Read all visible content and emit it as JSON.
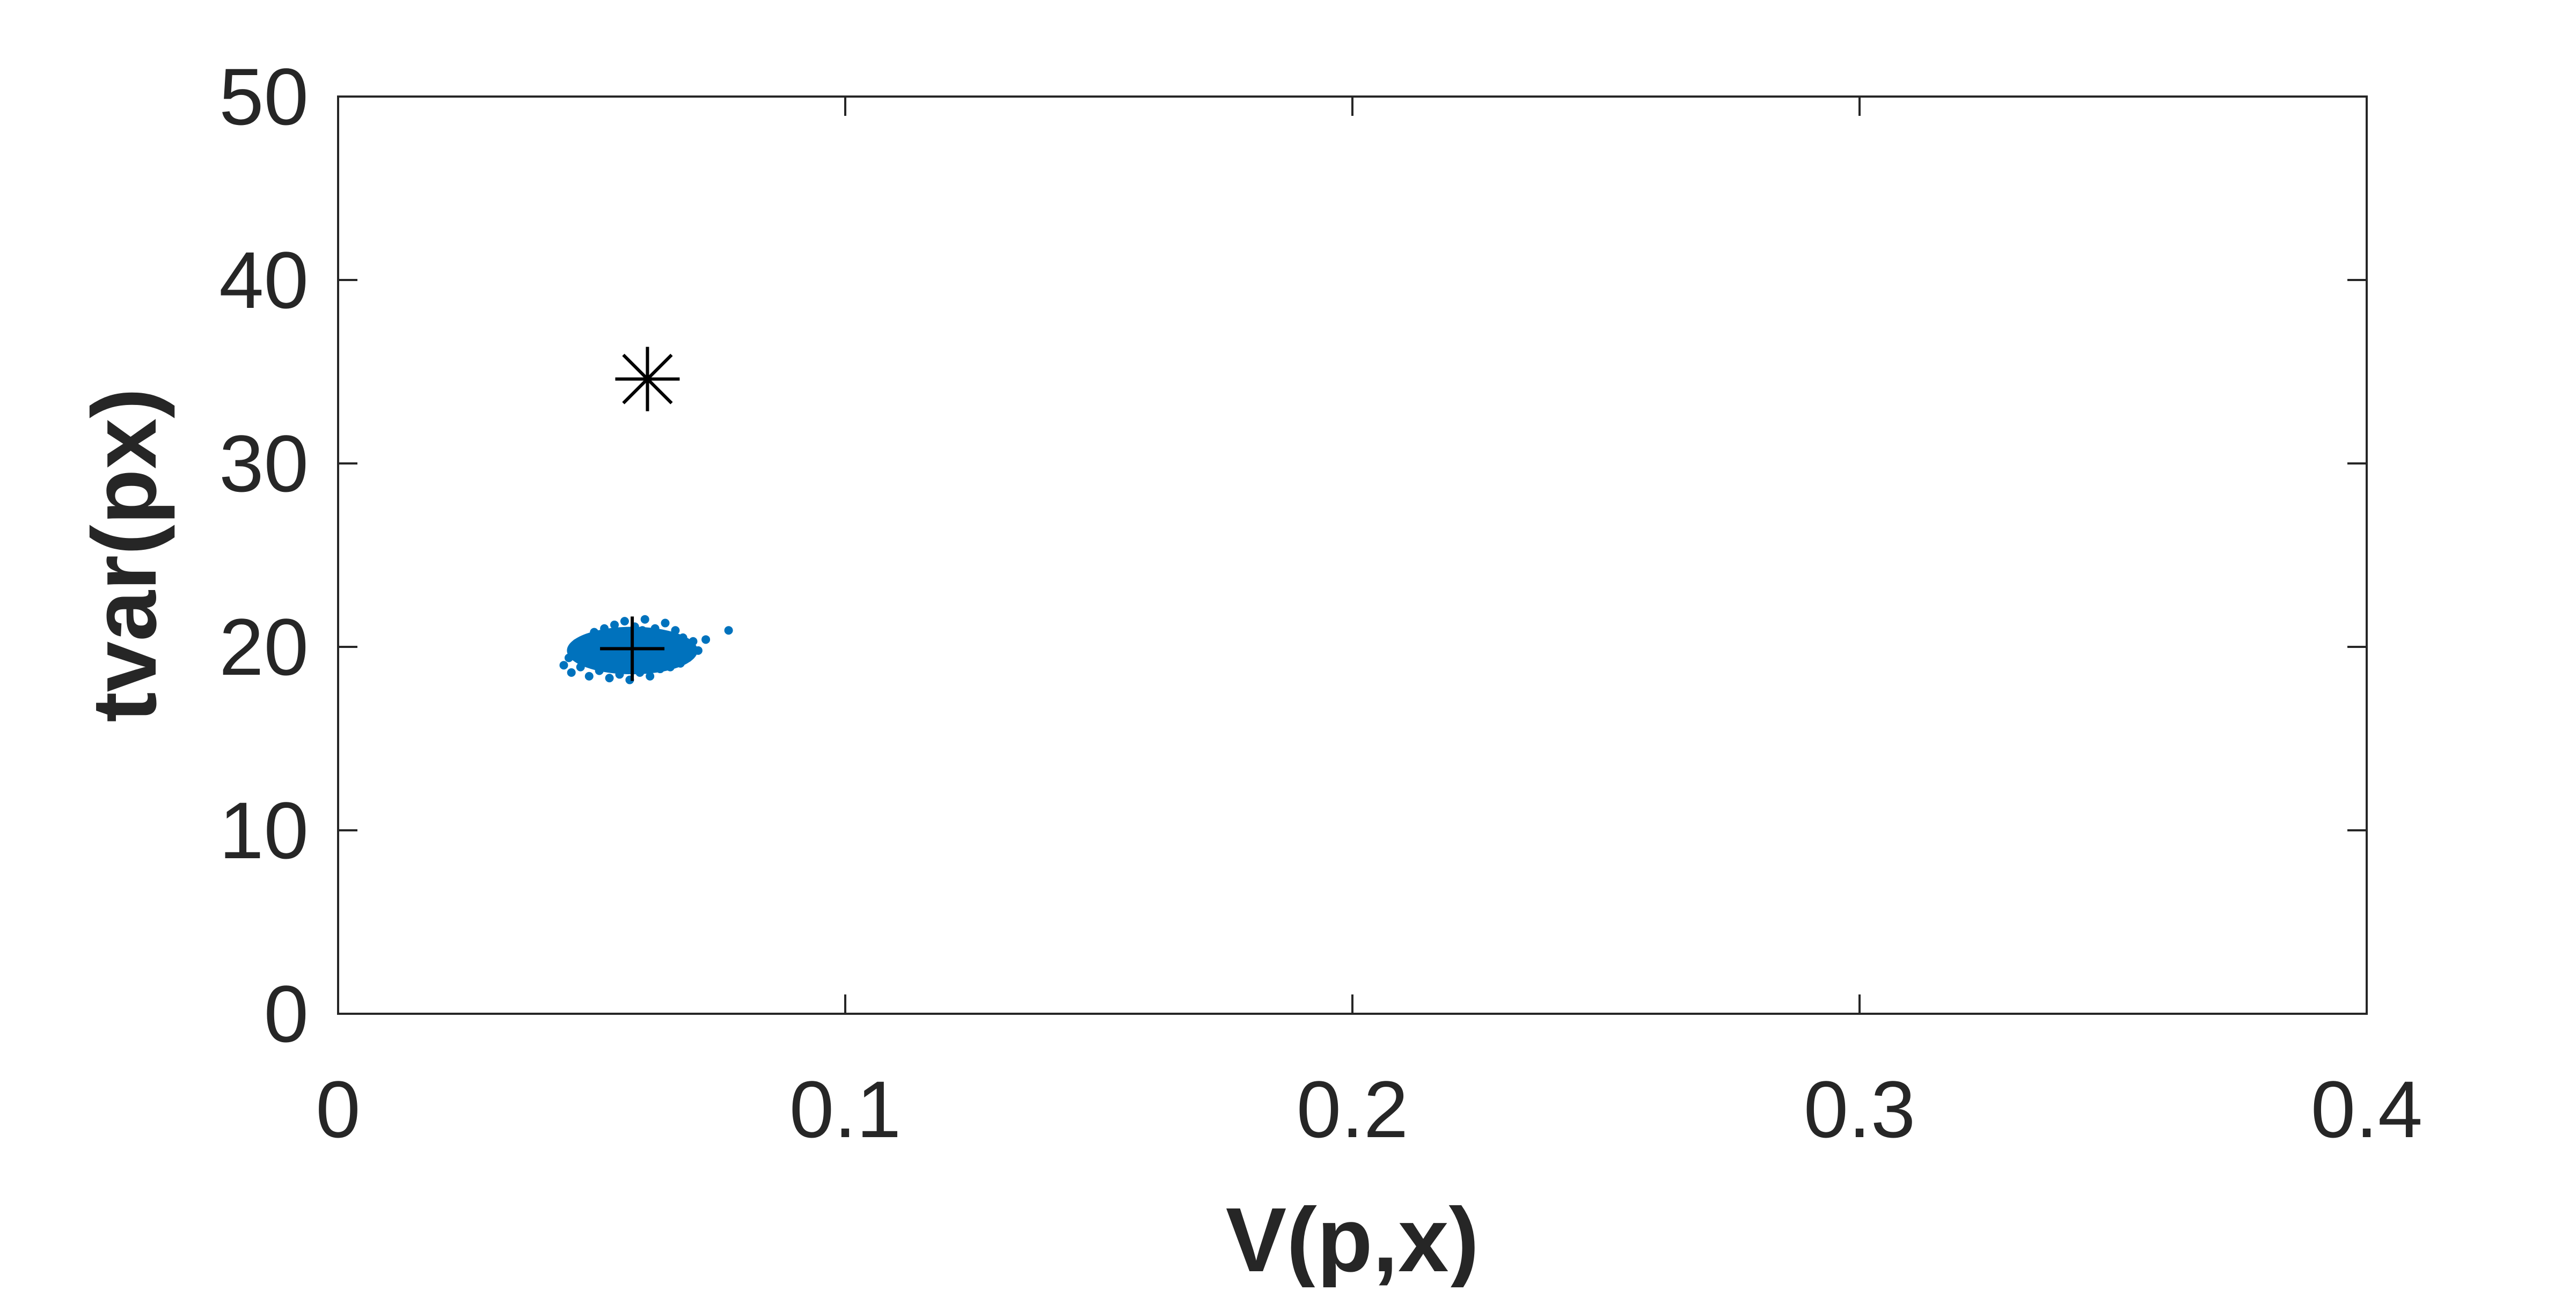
{
  "chart_data": {
    "type": "scatter",
    "title": "",
    "xlabel": "V(p,x)",
    "ylabel": "tvar(px)",
    "xlim": [
      0,
      0.4
    ],
    "ylim": [
      0,
      50
    ],
    "xticks": [
      0,
      0.1,
      0.2,
      0.3,
      0.4
    ],
    "xtick_labels": [
      "0",
      "0.1",
      "0.2",
      "0.3",
      "0.4"
    ],
    "yticks": [
      0,
      10,
      20,
      30,
      40,
      50
    ],
    "ytick_labels": [
      "0",
      "10",
      "20",
      "30",
      "40",
      "50"
    ],
    "grid": false,
    "legend": "none",
    "colors": {
      "points": "#0072BD",
      "markers": "#000000",
      "axes": "#262626"
    },
    "series": [
      {
        "marker": "dot",
        "color": "#0072BD",
        "cluster": {
          "x_center": 0.058,
          "y_center": 19.8,
          "x_range": [
            0.045,
            0.073
          ],
          "y_range": [
            18.0,
            21.6
          ]
        },
        "points": [
          [
            0.0445,
            19.0
          ],
          [
            0.0455,
            19.4
          ],
          [
            0.046,
            18.6
          ],
          [
            0.0465,
            19.8
          ],
          [
            0.047,
            20.2
          ],
          [
            0.0478,
            18.9
          ],
          [
            0.0485,
            19.5
          ],
          [
            0.049,
            20.4
          ],
          [
            0.0495,
            18.4
          ],
          [
            0.05,
            19.9
          ],
          [
            0.0505,
            20.8
          ],
          [
            0.051,
            19.2
          ],
          [
            0.0515,
            18.7
          ],
          [
            0.052,
            20.5
          ],
          [
            0.0525,
            21.0
          ],
          [
            0.053,
            19.6
          ],
          [
            0.0535,
            18.3
          ],
          [
            0.054,
            20.1
          ],
          [
            0.0545,
            21.2
          ],
          [
            0.055,
            19.0
          ],
          [
            0.0555,
            18.5
          ],
          [
            0.056,
            20.6
          ],
          [
            0.0565,
            21.4
          ],
          [
            0.057,
            19.3
          ],
          [
            0.0575,
            18.2
          ],
          [
            0.058,
            20.0
          ],
          [
            0.0585,
            21.1
          ],
          [
            0.059,
            19.7
          ],
          [
            0.0595,
            18.6
          ],
          [
            0.06,
            20.9
          ],
          [
            0.0605,
            21.5
          ],
          [
            0.061,
            19.4
          ],
          [
            0.0615,
            18.4
          ],
          [
            0.062,
            20.3
          ],
          [
            0.0625,
            21.0
          ],
          [
            0.063,
            19.8
          ],
          [
            0.0635,
            18.8
          ],
          [
            0.064,
            20.7
          ],
          [
            0.0645,
            21.3
          ],
          [
            0.065,
            19.5
          ],
          [
            0.0655,
            18.9
          ],
          [
            0.066,
            20.2
          ],
          [
            0.0665,
            20.9
          ],
          [
            0.067,
            19.6
          ],
          [
            0.0675,
            19.1
          ],
          [
            0.068,
            20.5
          ],
          [
            0.0685,
            20.0
          ],
          [
            0.069,
            19.4
          ],
          [
            0.07,
            20.3
          ],
          [
            0.071,
            19.8
          ],
          [
            0.0725,
            20.4
          ],
          [
            0.077,
            20.9
          ]
        ]
      },
      {
        "marker": "plus",
        "color": "#000000",
        "points": [
          [
            0.058,
            19.9
          ]
        ]
      },
      {
        "marker": "asterisk",
        "color": "#000000",
        "points": [
          [
            0.061,
            34.6
          ]
        ]
      }
    ]
  }
}
